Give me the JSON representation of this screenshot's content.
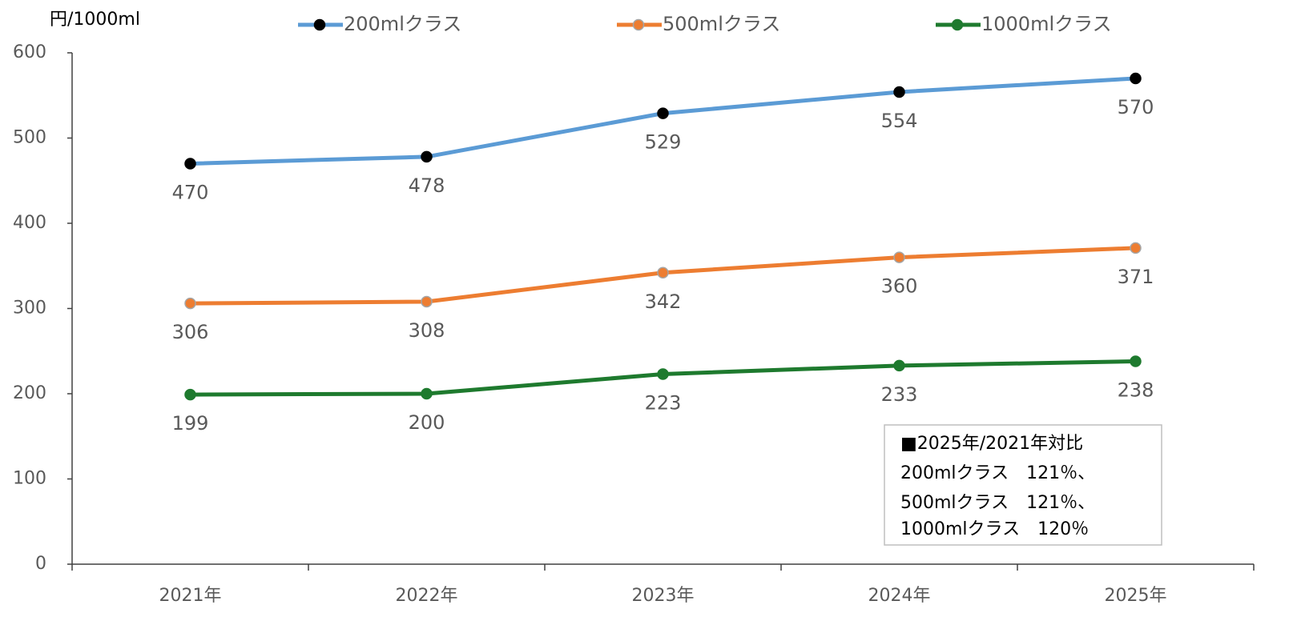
{
  "chart_data": {
    "type": "line",
    "y_label": "円/1000ml",
    "categories": [
      "2021年",
      "2022年",
      "2023年",
      "2024年",
      "2025年"
    ],
    "series": [
      {
        "name": "200mlクラス",
        "color": "#5b9bd5",
        "marker_color": "#000000",
        "values": [
          470,
          478,
          529,
          554,
          570
        ]
      },
      {
        "name": "500mlクラス",
        "color": "#ed7d31",
        "marker_color": "#ed7d31",
        "values": [
          306,
          308,
          342,
          360,
          371
        ]
      },
      {
        "name": "1000mlクラス",
        "color": "#1e7a2e",
        "marker_color": "#1e7a2e",
        "values": [
          199,
          200,
          223,
          233,
          238
        ]
      }
    ],
    "ylim": [
      0,
      600
    ],
    "yticks": [
      0,
      100,
      200,
      300,
      400,
      500,
      600
    ],
    "legend": "top",
    "annotation": [
      "■2025年/2021年対比",
      "200mlクラス　121％、",
      "500mlクラス　121％、",
      "1000mlクラス　120％"
    ]
  }
}
